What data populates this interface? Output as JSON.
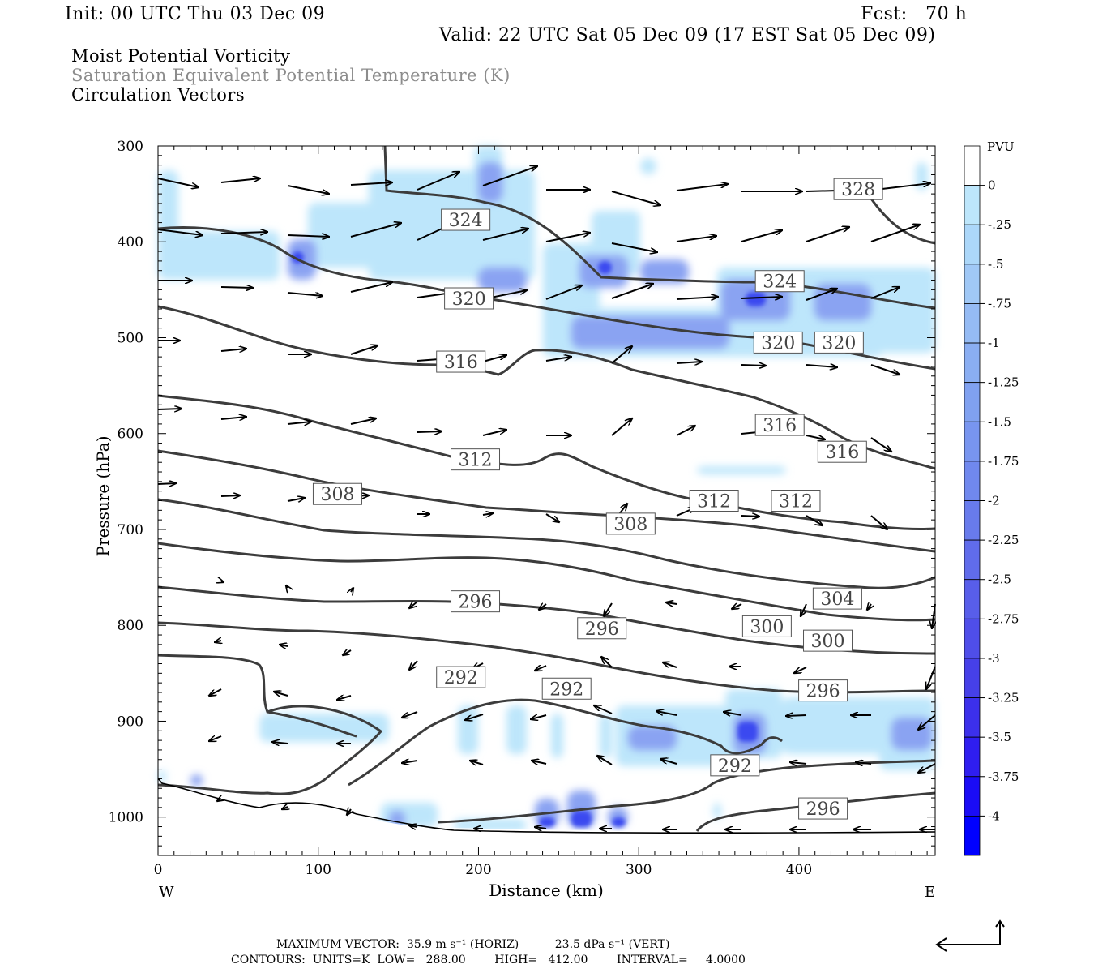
{
  "header": {
    "init": "Init: 00 UTC Thu 03 Dec 09",
    "fcst": "Fcst:   70 h",
    "valid": "Valid: 22 UTC Sat 05 Dec 09 (17 EST Sat 05 Dec 09)"
  },
  "fields": {
    "shaded": "Moist Potential Vorticity",
    "contour": "Saturation Equivalent Potential Temperature (K)",
    "vectors": "Circulation Vectors"
  },
  "colors": {
    "contour": "#3c3c3c",
    "shade_light": "#bde6fb",
    "shade_mid": "#8aa3f2",
    "shade_dark": "#3a4af0",
    "shade_max": "#0000ff"
  },
  "footer": {
    "max_vector": "MAXIMUM VECTOR:  35.9 m s⁻¹ (HORIZ)          23.5 dPa s⁻¹ (VERT)",
    "contours": "CONTOURS:  UNITS=K  LOW=   288.00        HIGH=   412.00        INTERVAL=     4.0000"
  },
  "chart_data": {
    "type": "cross-section",
    "xlabel": "Distance (km)",
    "ylabel": "Pressure (hPa)",
    "x_ticks": [
      "0",
      "100",
      "200",
      "300",
      "400"
    ],
    "x_tick_values": [
      0,
      100,
      200,
      300,
      400
    ],
    "y_ticks": [
      "300",
      "400",
      "500",
      "600",
      "700",
      "800",
      "900",
      "1000"
    ],
    "y_tick_values": [
      300,
      400,
      500,
      600,
      700,
      800,
      900,
      1000
    ],
    "xlim": [
      0,
      485
    ],
    "ylim": [
      1040,
      300
    ],
    "left_end_label": "W",
    "right_end_label": "E",
    "colorbar": {
      "unit": "PVU",
      "labels": [
        "0",
        "-.25",
        "-.5",
        "-.75",
        "-1",
        "-1.25",
        "-1.5",
        "-1.75",
        "-2",
        "-2.25",
        "-2.5",
        "-2.75",
        "-3",
        "-3.25",
        "-3.5",
        "-3.75",
        "-4"
      ],
      "colors": [
        "#ffffff",
        "#bde6fb",
        "#acd7f9",
        "#a0c8f6",
        "#95bbf4",
        "#8aaef2",
        "#80a1f0",
        "#7895ef",
        "#7088ee",
        "#687bec",
        "#606ceb",
        "#585eea",
        "#4f4ee9",
        "#4640e8",
        "#3c30eb",
        "#2f1ef0",
        "#1a0cf6",
        "#0000ff"
      ]
    },
    "contour_labels": [
      {
        "text": "328",
        "x": 437,
        "p": 345
      },
      {
        "text": "324",
        "x": 192,
        "p": 377
      },
      {
        "text": "324",
        "x": 388,
        "p": 441
      },
      {
        "text": "320",
        "x": 194,
        "p": 459
      },
      {
        "text": "320",
        "x": 387,
        "p": 505
      },
      {
        "text": "320",
        "x": 425,
        "p": 505
      },
      {
        "text": "316",
        "x": 189,
        "p": 525
      },
      {
        "text": "316",
        "x": 388,
        "p": 591
      },
      {
        "text": "316",
        "x": 427,
        "p": 619
      },
      {
        "text": "312",
        "x": 198,
        "p": 627
      },
      {
        "text": "312",
        "x": 347,
        "p": 670
      },
      {
        "text": "312",
        "x": 398,
        "p": 670
      },
      {
        "text": "308",
        "x": 112,
        "p": 663
      },
      {
        "text": "308",
        "x": 295,
        "p": 694
      },
      {
        "text": "304",
        "x": 424,
        "p": 772
      },
      {
        "text": "300",
        "x": 380,
        "p": 801
      },
      {
        "text": "300",
        "x": 418,
        "p": 816
      },
      {
        "text": "296",
        "x": 198,
        "p": 775
      },
      {
        "text": "296",
        "x": 277,
        "p": 803
      },
      {
        "text": "296",
        "x": 415,
        "p": 868
      },
      {
        "text": "296",
        "x": 415,
        "p": 991
      },
      {
        "text": "292",
        "x": 189,
        "p": 854
      },
      {
        "text": "292",
        "x": 255,
        "p": 866
      },
      {
        "text": "292",
        "x": 360,
        "p": 946
      }
    ]
  }
}
